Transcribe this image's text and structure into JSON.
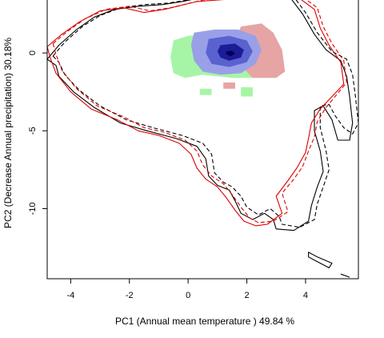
{
  "chart_data": {
    "type": "density-contour",
    "title": "",
    "xlabel": "PC1 (Annual mean temperature ) 49.84 %",
    "ylabel": "PC2 (Decrease Annual precipitation) 30.18%",
    "xlim": [
      -4.8,
      5.8
    ],
    "ylim": [
      -14.5,
      3.4
    ],
    "xticks": [
      -4,
      -2,
      0,
      2,
      4
    ],
    "yticks": [
      0,
      -5,
      -10
    ],
    "grid": false,
    "legend": "none",
    "colors": {
      "overlap": "#1c1c96",
      "niche_a": "#9aa0e8",
      "niche_b": "#e6a4a4",
      "unique_green": "#a6f5a6",
      "envelope_a": "#000000",
      "envelope_b": "#dd0000"
    },
    "density_patches": [
      {
        "role": "green",
        "color": "#a6f5a6",
        "points": [
          [
            -0.5,
            0.8
          ],
          [
            0,
            1.1
          ],
          [
            0.6,
            1.2
          ],
          [
            1.4,
            1.3
          ],
          [
            2,
            1.2
          ],
          [
            2.2,
            0.4
          ],
          [
            2.3,
            -0.8
          ],
          [
            2.2,
            -1.6
          ],
          [
            1.5,
            -1.6
          ],
          [
            0.5,
            -1.4
          ],
          [
            -0.1,
            -1.6
          ],
          [
            -0.5,
            -1.3
          ],
          [
            -0.6,
            -0.3
          ]
        ]
      },
      {
        "role": "green",
        "color": "#a6f5a6",
        "points": [
          [
            0.4,
            -2.3
          ],
          [
            0.8,
            -2.3
          ],
          [
            0.8,
            -2.7
          ],
          [
            0.4,
            -2.7
          ]
        ]
      },
      {
        "role": "green",
        "color": "#a6f5a6",
        "points": [
          [
            1.8,
            -2.2
          ],
          [
            2.2,
            -2.2
          ],
          [
            2.2,
            -2.8
          ],
          [
            1.8,
            -2.8
          ]
        ]
      },
      {
        "role": "red",
        "color": "#e6a4a4",
        "points": [
          [
            1.8,
            1.7
          ],
          [
            2.5,
            1.9
          ],
          [
            2.9,
            1.3
          ],
          [
            3.2,
            0.2
          ],
          [
            3.3,
            -1.2
          ],
          [
            3,
            -1.6
          ],
          [
            2.2,
            -1.6
          ],
          [
            1.7,
            -0.6
          ],
          [
            1.6,
            0.8
          ]
        ]
      },
      {
        "role": "red",
        "color": "#e6a4a4",
        "points": [
          [
            1.2,
            -1.9
          ],
          [
            1.6,
            -1.9
          ],
          [
            1.6,
            -2.3
          ],
          [
            1.2,
            -2.3
          ]
        ]
      },
      {
        "role": "blue",
        "color": "#9aa0e8",
        "points": [
          [
            0.2,
            1.3
          ],
          [
            0.9,
            1.5
          ],
          [
            1.7,
            1.5
          ],
          [
            2.3,
            1.1
          ],
          [
            2.5,
            0.2
          ],
          [
            2.3,
            -0.7
          ],
          [
            1.8,
            -1.3
          ],
          [
            1.1,
            -1.4
          ],
          [
            0.5,
            -1.2
          ],
          [
            0.2,
            -0.5
          ],
          [
            0.1,
            0.5
          ]
        ]
      },
      {
        "role": "blue",
        "color": "#5a62d0",
        "points": [
          [
            0.7,
            0.9
          ],
          [
            1.4,
            1.1
          ],
          [
            2,
            0.8
          ],
          [
            2.2,
            0.1
          ],
          [
            2,
            -0.6
          ],
          [
            1.4,
            -0.9
          ],
          [
            0.8,
            -0.7
          ],
          [
            0.6,
            0
          ]
        ]
      },
      {
        "role": "blue",
        "color": "#1c1c96",
        "points": [
          [
            1.1,
            0.5
          ],
          [
            1.6,
            0.6
          ],
          [
            1.9,
            0.2
          ],
          [
            1.8,
            -0.3
          ],
          [
            1.4,
            -0.5
          ],
          [
            1.1,
            -0.3
          ],
          [
            1,
            0.1
          ]
        ]
      },
      {
        "role": "blue",
        "color": "#000060",
        "points": [
          [
            1.3,
            0.1
          ],
          [
            1.5,
            0.15
          ],
          [
            1.6,
            -0.05
          ],
          [
            1.45,
            -0.2
          ],
          [
            1.3,
            -0.1
          ]
        ]
      }
    ],
    "envelope_lines": [
      {
        "name": "",
        "color": "#000000",
        "dash": "solid",
        "points": [
          [
            -4.8,
            -0.4
          ],
          [
            -4.4,
            0.5
          ],
          [
            -3.8,
            1.5
          ],
          [
            -3.2,
            2.3
          ],
          [
            -2.5,
            2.8
          ],
          [
            -1.7,
            3
          ],
          [
            -0.9,
            3.1
          ],
          [
            -0.2,
            3.3
          ],
          [
            0.3,
            3.5
          ],
          [
            2.2,
            3.6
          ],
          [
            3.5,
            3.5
          ],
          [
            3.9,
            2.5
          ],
          [
            4.3,
            1.2
          ],
          [
            4.7,
            0.2
          ],
          [
            5.2,
            -0.5
          ],
          [
            5.4,
            -1.5
          ],
          [
            5.5,
            -2.8
          ],
          [
            5.6,
            -4.5
          ],
          [
            5.5,
            -5.6
          ],
          [
            5.1,
            -5.6
          ],
          [
            4.9,
            -4.3
          ],
          [
            4.6,
            -3.4
          ],
          [
            4.3,
            -3.7
          ],
          [
            4.3,
            -5
          ],
          [
            4.5,
            -6.3
          ],
          [
            4.6,
            -7.6
          ],
          [
            4.4,
            -8.6
          ],
          [
            4.2,
            -9.8
          ],
          [
            4.1,
            -10.8
          ],
          [
            3.6,
            -11.4
          ],
          [
            3,
            -11.3
          ],
          [
            2.9,
            -10.7
          ],
          [
            2.6,
            -10.3
          ],
          [
            2.2,
            -10.7
          ],
          [
            1.8,
            -10.3
          ],
          [
            1.6,
            -9.5
          ],
          [
            1.4,
            -8.8
          ],
          [
            1,
            -8.5
          ],
          [
            0.7,
            -7.9
          ],
          [
            0.6,
            -6.8
          ],
          [
            0.3,
            -6
          ],
          [
            -0.4,
            -5.5
          ],
          [
            -1.4,
            -5
          ],
          [
            -2.3,
            -4.5
          ],
          [
            -3.2,
            -3.5
          ],
          [
            -3.9,
            -2.5
          ],
          [
            -4.4,
            -1.5
          ],
          [
            -4.5,
            -0.8
          ]
        ]
      },
      {
        "name": "",
        "color": "#000000",
        "dash": "dashed",
        "points": [
          [
            -4.6,
            -0.2
          ],
          [
            -4.2,
            0.7
          ],
          [
            -3.6,
            1.7
          ],
          [
            -3,
            2.4
          ],
          [
            -2.3,
            2.9
          ],
          [
            -1.5,
            3.1
          ],
          [
            -0.7,
            3.2
          ],
          [
            0,
            3.4
          ],
          [
            0.5,
            3.6
          ],
          [
            2.4,
            3.7
          ],
          [
            3.6,
            3.6
          ],
          [
            4,
            2.6
          ],
          [
            4.4,
            1.3
          ],
          [
            4.9,
            0.1
          ],
          [
            5.4,
            -0.4
          ],
          [
            5.6,
            -1.4
          ],
          [
            5.7,
            -2.8
          ],
          [
            5.8,
            -4.5
          ],
          [
            5.6,
            -5.2
          ],
          [
            5.3,
            -4.8
          ],
          [
            5,
            -4
          ],
          [
            4.8,
            -3.3
          ],
          [
            4.5,
            -3.4
          ],
          [
            4.5,
            -4.8
          ],
          [
            4.7,
            -6.3
          ],
          [
            4.8,
            -7.5
          ],
          [
            4.6,
            -8.6
          ],
          [
            4.4,
            -9.7
          ],
          [
            4.3,
            -10.7
          ],
          [
            3.8,
            -11.2
          ],
          [
            3.2,
            -11
          ],
          [
            3.1,
            -10.5
          ],
          [
            2.8,
            -10
          ],
          [
            2.4,
            -10.4
          ],
          [
            2,
            -9.9
          ],
          [
            1.8,
            -9.2
          ],
          [
            1.5,
            -8.6
          ],
          [
            1.2,
            -8.3
          ],
          [
            0.9,
            -7.7
          ],
          [
            0.8,
            -6.5
          ],
          [
            0.5,
            -5.8
          ],
          [
            -0.2,
            -5.3
          ],
          [
            -1.2,
            -4.8
          ],
          [
            -2.1,
            -4.3
          ],
          [
            -3,
            -3.4
          ],
          [
            -3.7,
            -2.4
          ],
          [
            -4.2,
            -1.4
          ],
          [
            -4.4,
            -0.6
          ]
        ]
      },
      {
        "name": "",
        "color": "#000000",
        "dash": "solid",
        "points": [
          [
            4.1,
            -12.8
          ],
          [
            4.4,
            -13.1
          ],
          [
            4.9,
            -13.5
          ],
          [
            4.8,
            -13.8
          ],
          [
            4.4,
            -13.4
          ],
          [
            4.1,
            -13.1
          ]
        ]
      },
      {
        "name": "",
        "color": "#000000",
        "dash": "solid",
        "points": [
          [
            5.2,
            -14.2
          ],
          [
            5.5,
            -14.4
          ]
        ]
      },
      {
        "name": "",
        "color": "#dd0000",
        "dash": "solid",
        "points": [
          [
            -4.8,
            0.4
          ],
          [
            -4.3,
            1.2
          ],
          [
            -3.7,
            2
          ],
          [
            -3,
            2.7
          ],
          [
            -2.2,
            2.9
          ],
          [
            -1.5,
            2.6
          ],
          [
            -0.8,
            2.8
          ],
          [
            0.3,
            3.3
          ],
          [
            2.5,
            3.6
          ],
          [
            3.8,
            3.5
          ],
          [
            4.3,
            2.8
          ],
          [
            4.5,
            1.6
          ],
          [
            4.8,
            0.5
          ],
          [
            5.2,
            -0.6
          ],
          [
            5.3,
            -2
          ],
          [
            4.5,
            -3.6
          ],
          [
            4.2,
            -4.5
          ],
          [
            4.1,
            -5.5
          ],
          [
            4,
            -6.4
          ],
          [
            3.7,
            -7.4
          ],
          [
            3.4,
            -8.2
          ],
          [
            3,
            -9.2
          ],
          [
            3.2,
            -10.3
          ],
          [
            2.7,
            -11
          ],
          [
            2.3,
            -11.1
          ],
          [
            1.9,
            -10.8
          ],
          [
            1.6,
            -10.1
          ],
          [
            1.3,
            -9.3
          ],
          [
            1,
            -8.6
          ],
          [
            0.6,
            -8.1
          ],
          [
            0.3,
            -7.4
          ],
          [
            0.1,
            -6.5
          ],
          [
            -0.3,
            -5.8
          ],
          [
            -1,
            -5.3
          ],
          [
            -1.7,
            -5
          ],
          [
            -2.4,
            -4.3
          ],
          [
            -3.3,
            -3.6
          ],
          [
            -4,
            -2.5
          ],
          [
            -4.5,
            -1.3
          ],
          [
            -4.7,
            -0.3
          ]
        ]
      },
      {
        "name": "",
        "color": "#dd0000",
        "dash": "dashed",
        "points": [
          [
            -4.6,
            0.6
          ],
          [
            -4.1,
            1.4
          ],
          [
            -3.5,
            2.2
          ],
          [
            -2.8,
            2.8
          ],
          [
            -2,
            3
          ],
          [
            -1.3,
            2.7
          ],
          [
            -0.6,
            2.9
          ],
          [
            0.5,
            3.4
          ],
          [
            2.6,
            3.7
          ],
          [
            3.9,
            3.6
          ],
          [
            4.4,
            2.9
          ],
          [
            4.6,
            1.7
          ],
          [
            4.9,
            0.6
          ],
          [
            5.3,
            -0.5
          ],
          [
            5.4,
            -1.9
          ],
          [
            4.7,
            -3.5
          ],
          [
            4.4,
            -4.4
          ],
          [
            4.3,
            -5.4
          ],
          [
            4.1,
            -6.3
          ],
          [
            3.9,
            -7.3
          ],
          [
            3.6,
            -8.1
          ],
          [
            3.2,
            -9
          ],
          [
            3.4,
            -10.2
          ],
          [
            2.9,
            -10.8
          ],
          [
            2.4,
            -10.9
          ],
          [
            2.1,
            -10.6
          ],
          [
            1.8,
            -9.9
          ],
          [
            1.5,
            -9.1
          ],
          [
            1.2,
            -8.4
          ],
          [
            0.8,
            -7.9
          ],
          [
            0.5,
            -7.2
          ],
          [
            0.3,
            -6.3
          ],
          [
            -0.1,
            -5.6
          ],
          [
            -0.8,
            -5.1
          ],
          [
            -1.5,
            -4.8
          ],
          [
            -2.2,
            -4.1
          ],
          [
            -3.1,
            -3.4
          ],
          [
            -3.8,
            -2.3
          ],
          [
            -4.3,
            -1.1
          ],
          [
            -4.5,
            -0.1
          ]
        ]
      }
    ]
  }
}
